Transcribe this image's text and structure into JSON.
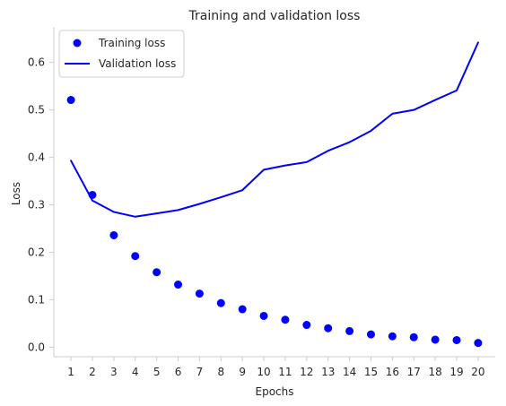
{
  "chart_data": {
    "type": "line",
    "title": "Training and validation loss",
    "xlabel": "Epochs",
    "ylabel": "Loss",
    "x": [
      1,
      2,
      3,
      4,
      5,
      6,
      7,
      8,
      9,
      10,
      11,
      12,
      13,
      14,
      15,
      16,
      17,
      18,
      19,
      20
    ],
    "xlim": [
      0.2,
      20.8
    ],
    "ylim": [
      -0.02,
      0.675
    ],
    "xticks": [
      "1",
      "2",
      "3",
      "4",
      "5",
      "6",
      "7",
      "8",
      "9",
      "10",
      "11",
      "12",
      "13",
      "14",
      "15",
      "16",
      "17",
      "18",
      "19",
      "20"
    ],
    "yticks": [
      {
        "value": 0.0,
        "label": "0.0"
      },
      {
        "value": 0.1,
        "label": "0.1"
      },
      {
        "value": 0.2,
        "label": "0.2"
      },
      {
        "value": 0.3,
        "label": "0.3"
      },
      {
        "value": 0.4,
        "label": "0.4"
      },
      {
        "value": 0.5,
        "label": "0.5"
      },
      {
        "value": 0.6,
        "label": "0.6"
      }
    ],
    "grid": false,
    "legend_position": "top-left",
    "series": [
      {
        "name": "Training loss",
        "style": "points",
        "color": "#0000ff",
        "values": [
          0.521,
          0.321,
          0.236,
          0.192,
          0.158,
          0.132,
          0.113,
          0.093,
          0.08,
          0.066,
          0.058,
          0.047,
          0.04,
          0.034,
          0.027,
          0.023,
          0.021,
          0.016,
          0.015,
          0.009
        ]
      },
      {
        "name": "Validation loss",
        "style": "line",
        "color": "#0000ff",
        "values": [
          0.393,
          0.309,
          0.285,
          0.275,
          0.282,
          0.289,
          0.302,
          0.316,
          0.331,
          0.374,
          0.383,
          0.39,
          0.414,
          0.432,
          0.456,
          0.492,
          0.5,
          0.521,
          0.541,
          0.642
        ]
      }
    ]
  }
}
